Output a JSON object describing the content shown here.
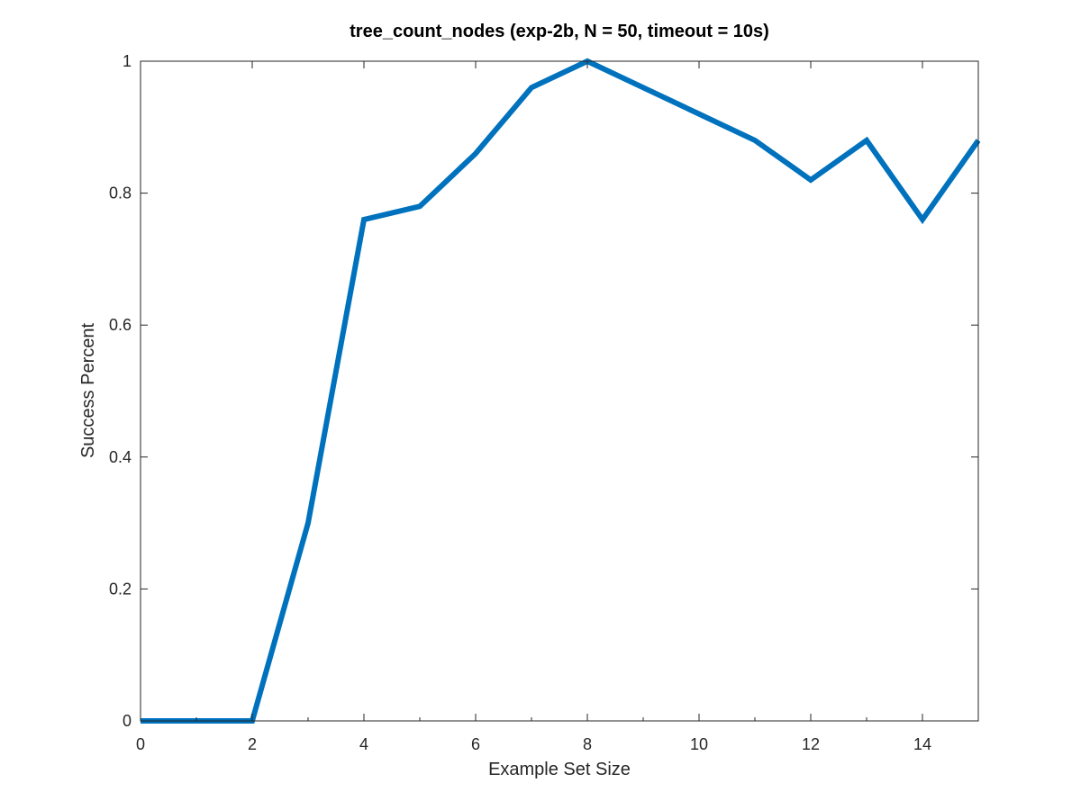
{
  "chart_data": {
    "type": "line",
    "title": "tree_count_nodes (exp-2b, N = 50, timeout = 10s)",
    "xlabel": "Example Set Size",
    "ylabel": "Success Percent",
    "xlim": [
      0,
      15
    ],
    "ylim": [
      0,
      1
    ],
    "xticks": [
      0,
      2,
      4,
      6,
      8,
      10,
      12,
      14
    ],
    "yticks": [
      0,
      0.2,
      0.4,
      0.6,
      0.8,
      1
    ],
    "xtick_labels": [
      "0",
      "2",
      "4",
      "6",
      "8",
      "10",
      "12",
      "14"
    ],
    "ytick_labels": [
      "0",
      "0.2",
      "0.4",
      "0.6",
      "0.8",
      "1"
    ],
    "grid": false,
    "series": [
      {
        "color": "#0072BD",
        "x": [
          0,
          1,
          2,
          3,
          4,
          5,
          6,
          7,
          8,
          9,
          10,
          11,
          12,
          13,
          14,
          15
        ],
        "y": [
          0,
          0,
          0,
          0.3,
          0.76,
          0.78,
          0.86,
          0.96,
          1.0,
          0.96,
          0.92,
          0.88,
          0.82,
          0.88,
          0.76,
          0.88
        ]
      }
    ]
  }
}
